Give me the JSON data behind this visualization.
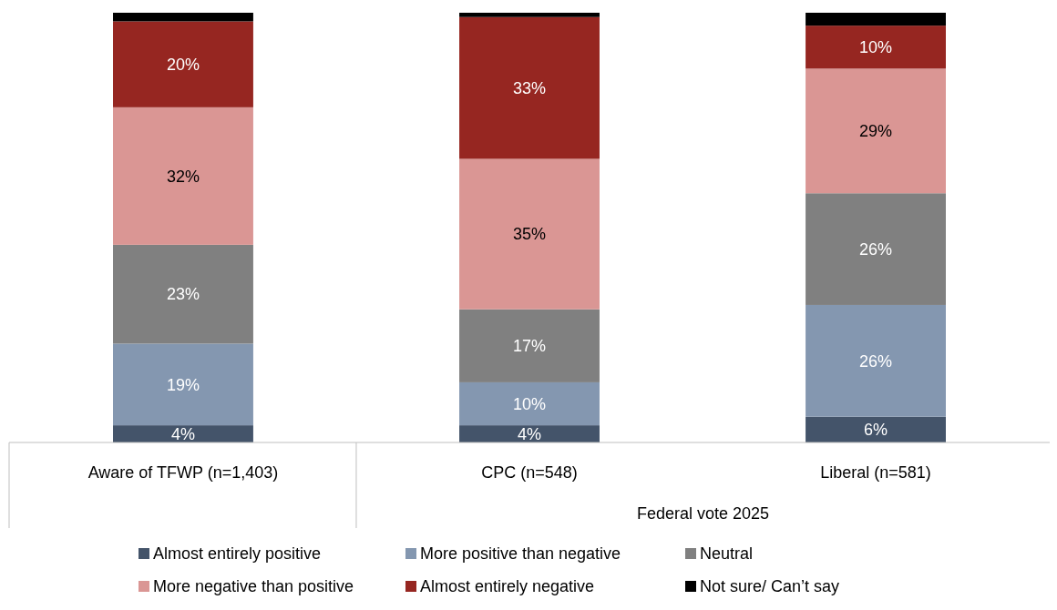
{
  "chart_data": {
    "type": "bar",
    "stacked": true,
    "categories": [
      "Aware of TFWP (n=1,403)",
      "CPC (n=548)",
      "Liberal (n=581)"
    ],
    "series": [
      {
        "name": "Almost entirely positive",
        "color": "#44546a",
        "values": [
          4,
          4,
          6
        ],
        "value_labels": [
          "4%",
          "4%",
          "6%"
        ]
      },
      {
        "name": "More positive than negative",
        "color": "#8497b0",
        "values": [
          19,
          10,
          26
        ],
        "value_labels": [
          "19%",
          "10%",
          "26%"
        ]
      },
      {
        "name": "Neutral",
        "color": "#808080",
        "values": [
          23,
          17,
          26
        ],
        "value_labels": [
          "23%",
          "17%",
          "26%"
        ]
      },
      {
        "name": "More negative than positive",
        "color": "#da9694",
        "values": [
          32,
          35,
          29
        ],
        "value_labels": [
          "32%",
          "35%",
          "29%"
        ]
      },
      {
        "name": "Almost entirely negative",
        "color": "#962621",
        "values": [
          20,
          33,
          10
        ],
        "value_labels": [
          "20%",
          "33%",
          "10%"
        ]
      },
      {
        "name": "Not sure/ Can’t say",
        "color": "#000000",
        "values": [
          2,
          1,
          3
        ],
        "value_labels": [
          null,
          null,
          null
        ]
      }
    ],
    "annotations": [
      "Federal vote 2025"
    ],
    "legend": "bottom"
  }
}
